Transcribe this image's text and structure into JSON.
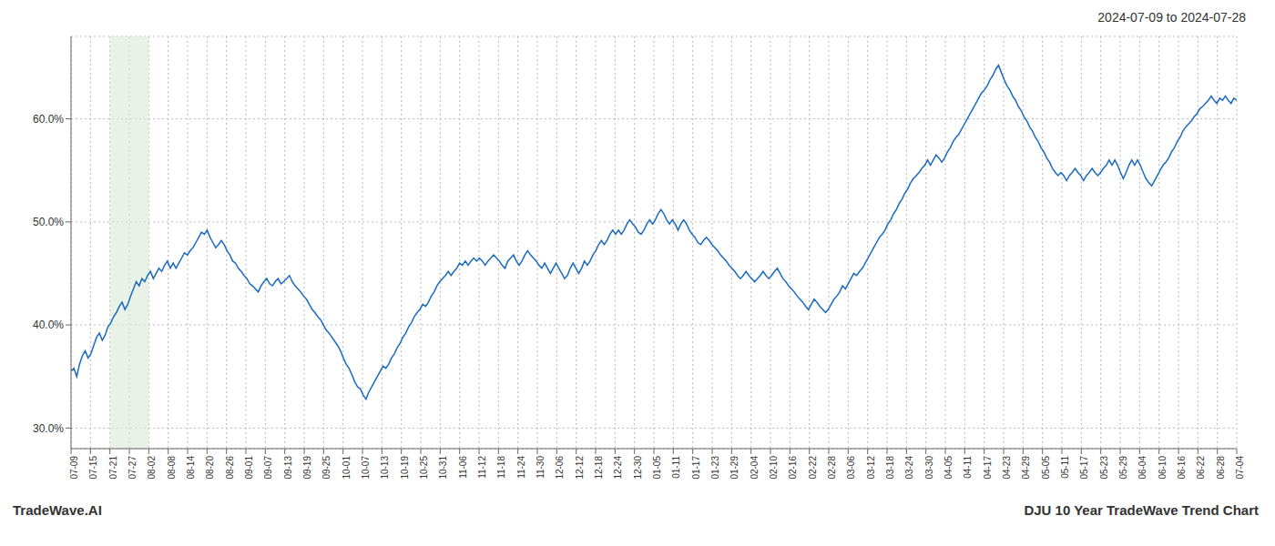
{
  "chart_data": {
    "type": "line",
    "title": "2024-07-09 to 2024-07-28",
    "annotations": [
      "TradeWave.AI",
      "DJU 10 Year TradeWave Trend Chart"
    ],
    "color": "#1b6abf",
    "grid": true,
    "regions": [
      {
        "x": [
          13.7,
          27.4
        ],
        "color": "#d5e8d4"
      }
    ],
    "xlim": [
      0,
      411
    ],
    "xticks": [
      {
        "value": 0,
        "label": "07-09"
      },
      {
        "value": 6.85,
        "label": "07-15"
      },
      {
        "value": 13.7,
        "label": "07-21"
      },
      {
        "value": 20.55,
        "label": "07-27"
      },
      {
        "value": 27.4,
        "label": "08-02"
      },
      {
        "value": 34.25,
        "label": "08-08"
      },
      {
        "value": 41.1,
        "label": "08-14"
      },
      {
        "value": 47.95,
        "label": "08-20"
      },
      {
        "value": 54.8,
        "label": "08-26"
      },
      {
        "value": 61.65,
        "label": "09-01"
      },
      {
        "value": 68.5,
        "label": "09-07"
      },
      {
        "value": 75.35,
        "label": "09-13"
      },
      {
        "value": 82.2,
        "label": "09-19"
      },
      {
        "value": 89.05,
        "label": "09-25"
      },
      {
        "value": 95.9,
        "label": "10-01"
      },
      {
        "value": 102.75,
        "label": "10-07"
      },
      {
        "value": 109.6,
        "label": "10-13"
      },
      {
        "value": 116.45,
        "label": "10-19"
      },
      {
        "value": 123.3,
        "label": "10-25"
      },
      {
        "value": 130.15,
        "label": "10-31"
      },
      {
        "value": 137,
        "label": "11-06"
      },
      {
        "value": 143.85,
        "label": "11-12"
      },
      {
        "value": 150.7,
        "label": "11-18"
      },
      {
        "value": 157.55,
        "label": "11-24"
      },
      {
        "value": 164.4,
        "label": "11-30"
      },
      {
        "value": 171.25,
        "label": "12-06"
      },
      {
        "value": 178.1,
        "label": "12-12"
      },
      {
        "value": 184.95,
        "label": "12-18"
      },
      {
        "value": 191.8,
        "label": "12-24"
      },
      {
        "value": 198.65,
        "label": "12-30"
      },
      {
        "value": 205.5,
        "label": "01-05"
      },
      {
        "value": 212.35,
        "label": "01-11"
      },
      {
        "value": 219.2,
        "label": "01-17"
      },
      {
        "value": 226.05,
        "label": "01-23"
      },
      {
        "value": 232.9,
        "label": "01-29"
      },
      {
        "value": 239.75,
        "label": "02-04"
      },
      {
        "value": 246.6,
        "label": "02-10"
      },
      {
        "value": 253.45,
        "label": "02-16"
      },
      {
        "value": 260.3,
        "label": "02-22"
      },
      {
        "value": 267.15,
        "label": "02-28"
      },
      {
        "value": 274,
        "label": "03-06"
      },
      {
        "value": 280.85,
        "label": "03-12"
      },
      {
        "value": 287.7,
        "label": "03-18"
      },
      {
        "value": 294.55,
        "label": "03-24"
      },
      {
        "value": 301.4,
        "label": "03-30"
      },
      {
        "value": 308.25,
        "label": "04-05"
      },
      {
        "value": 315.1,
        "label": "04-11"
      },
      {
        "value": 321.95,
        "label": "04-17"
      },
      {
        "value": 328.8,
        "label": "04-23"
      },
      {
        "value": 335.65,
        "label": "04-29"
      },
      {
        "value": 342.5,
        "label": "05-05"
      },
      {
        "value": 349.35,
        "label": "05-11"
      },
      {
        "value": 356.2,
        "label": "05-17"
      },
      {
        "value": 363.05,
        "label": "05-23"
      },
      {
        "value": 369.9,
        "label": "05-29"
      },
      {
        "value": 376.75,
        "label": "06-04"
      },
      {
        "value": 383.6,
        "label": "06-10"
      },
      {
        "value": 390.45,
        "label": "06-16"
      },
      {
        "value": 397.3,
        "label": "06-22"
      },
      {
        "value": 404.15,
        "label": "06-28"
      },
      {
        "value": 411,
        "label": "07-04"
      }
    ],
    "ylim": [
      0.28,
      0.68
    ],
    "yticks": [
      {
        "value": 0.3,
        "label": "30.0%"
      },
      {
        "value": 0.4,
        "label": "40.0%"
      },
      {
        "value": 0.5,
        "label": "50.0%"
      },
      {
        "value": 0.6,
        "label": "60.0%"
      }
    ],
    "x": [
      0,
      1,
      2,
      3,
      4,
      5,
      6,
      7,
      8,
      9,
      10,
      11,
      12,
      13,
      14,
      15,
      16,
      17,
      18,
      19,
      20,
      21,
      22,
      23,
      24,
      25,
      26,
      27,
      28,
      29,
      30,
      31,
      32,
      33,
      34,
      35,
      36,
      37,
      38,
      39,
      40,
      41,
      42,
      43,
      44,
      45,
      46,
      47,
      48,
      49,
      50,
      51,
      52,
      53,
      54,
      55,
      56,
      57,
      58,
      59,
      60,
      61,
      62,
      63,
      64,
      65,
      66,
      67,
      68,
      69,
      70,
      71,
      72,
      73,
      74,
      75,
      76,
      77,
      78,
      79,
      80,
      81,
      82,
      83,
      84,
      85,
      86,
      87,
      88,
      89,
      90,
      91,
      92,
      93,
      94,
      95,
      96,
      97,
      98,
      99,
      100,
      101,
      102,
      103,
      104,
      105,
      106,
      107,
      108,
      109,
      110,
      111,
      112,
      113,
      114,
      115,
      116,
      117,
      118,
      119,
      120,
      121,
      122,
      123,
      124,
      125,
      126,
      127,
      128,
      129,
      130,
      131,
      132,
      133,
      134,
      135,
      136,
      137,
      138,
      139,
      140,
      141,
      142,
      143,
      144,
      145,
      146,
      147,
      148,
      149,
      150,
      151,
      152,
      153,
      154,
      155,
      156,
      157,
      158,
      159,
      160,
      161,
      162,
      163,
      164,
      165,
      166,
      167,
      168,
      169,
      170,
      171,
      172,
      173,
      174,
      175,
      176,
      177,
      178,
      179,
      180,
      181,
      182,
      183,
      184,
      185,
      186,
      187,
      188,
      189,
      190,
      191,
      192,
      193,
      194,
      195,
      196,
      197,
      198,
      199,
      200,
      201,
      202,
      203,
      204,
      205,
      206,
      207,
      208,
      209,
      210,
      211,
      212,
      213,
      214,
      215,
      216,
      217,
      218,
      219,
      220,
      221,
      222,
      223,
      224,
      225,
      226,
      227,
      228,
      229,
      230,
      231,
      232,
      233,
      234,
      235,
      236,
      237,
      238,
      239,
      240,
      241,
      242,
      243,
      244,
      245,
      246,
      247,
      248,
      249,
      250,
      251,
      252,
      253,
      254,
      255,
      256,
      257,
      258,
      259,
      260,
      261,
      262,
      263,
      264,
      265,
      266,
      267,
      268,
      269,
      270,
      271,
      272,
      273,
      274,
      275,
      276,
      277,
      278,
      279,
      280,
      281,
      282,
      283,
      284,
      285,
      286,
      287,
      288,
      289,
      290,
      291,
      292,
      293,
      294,
      295,
      296,
      297,
      298,
      299,
      300,
      301,
      302,
      303,
      304,
      305,
      306,
      307,
      308,
      309,
      310,
      311,
      312,
      313,
      314,
      315,
      316,
      317,
      318,
      319,
      320,
      321,
      322,
      323,
      324,
      325,
      326,
      327,
      328,
      329,
      330,
      331,
      332,
      333,
      334,
      335,
      336,
      337,
      338,
      339,
      340,
      341,
      342,
      343,
      344,
      345,
      346,
      347,
      348,
      349,
      350,
      351,
      352,
      353,
      354,
      355,
      356,
      357,
      358,
      359,
      360,
      361,
      362,
      363,
      364,
      365,
      366,
      367,
      368,
      369,
      370,
      371,
      372,
      373,
      374,
      375,
      376,
      377,
      378,
      379,
      380,
      381,
      382,
      383,
      384,
      385,
      386,
      387,
      388,
      389,
      390,
      391,
      392,
      393,
      394,
      395,
      396,
      397,
      398,
      399,
      400,
      401,
      402,
      403,
      404,
      405,
      406,
      407,
      408,
      409,
      410,
      411
    ],
    "values": [
      0.355,
      0.358,
      0.35,
      0.362,
      0.37,
      0.375,
      0.368,
      0.372,
      0.38,
      0.388,
      0.392,
      0.385,
      0.39,
      0.398,
      0.402,
      0.408,
      0.412,
      0.418,
      0.422,
      0.415,
      0.42,
      0.428,
      0.435,
      0.442,
      0.438,
      0.445,
      0.442,
      0.448,
      0.452,
      0.445,
      0.45,
      0.455,
      0.452,
      0.458,
      0.462,
      0.455,
      0.46,
      0.455,
      0.46,
      0.465,
      0.47,
      0.468,
      0.472,
      0.475,
      0.48,
      0.485,
      0.49,
      0.488,
      0.492,
      0.485,
      0.48,
      0.475,
      0.478,
      0.482,
      0.478,
      0.472,
      0.468,
      0.462,
      0.46,
      0.455,
      0.452,
      0.448,
      0.445,
      0.44,
      0.438,
      0.435,
      0.432,
      0.438,
      0.442,
      0.445,
      0.44,
      0.438,
      0.442,
      0.445,
      0.44,
      0.442,
      0.445,
      0.448,
      0.442,
      0.438,
      0.435,
      0.432,
      0.428,
      0.425,
      0.42,
      0.415,
      0.412,
      0.408,
      0.405,
      0.4,
      0.395,
      0.392,
      0.388,
      0.384,
      0.38,
      0.375,
      0.368,
      0.362,
      0.358,
      0.352,
      0.345,
      0.34,
      0.338,
      0.332,
      0.328,
      0.335,
      0.34,
      0.345,
      0.35,
      0.355,
      0.36,
      0.358,
      0.362,
      0.368,
      0.372,
      0.378,
      0.382,
      0.388,
      0.392,
      0.398,
      0.402,
      0.408,
      0.412,
      0.415,
      0.42,
      0.418,
      0.422,
      0.428,
      0.432,
      0.438,
      0.442,
      0.445,
      0.448,
      0.452,
      0.448,
      0.452,
      0.455,
      0.46,
      0.458,
      0.462,
      0.458,
      0.462,
      0.465,
      0.462,
      0.465,
      0.462,
      0.458,
      0.462,
      0.465,
      0.468,
      0.465,
      0.462,
      0.458,
      0.455,
      0.462,
      0.465,
      0.468,
      0.462,
      0.458,
      0.462,
      0.468,
      0.472,
      0.468,
      0.465,
      0.462,
      0.458,
      0.455,
      0.46,
      0.455,
      0.45,
      0.455,
      0.46,
      0.455,
      0.45,
      0.445,
      0.448,
      0.455,
      0.46,
      0.455,
      0.45,
      0.455,
      0.462,
      0.458,
      0.462,
      0.468,
      0.472,
      0.478,
      0.482,
      0.478,
      0.482,
      0.488,
      0.492,
      0.488,
      0.492,
      0.488,
      0.492,
      0.498,
      0.502,
      0.498,
      0.495,
      0.49,
      0.488,
      0.492,
      0.498,
      0.502,
      0.498,
      0.502,
      0.508,
      0.512,
      0.508,
      0.502,
      0.498,
      0.502,
      0.498,
      0.492,
      0.498,
      0.502,
      0.498,
      0.492,
      0.488,
      0.485,
      0.48,
      0.478,
      0.482,
      0.485,
      0.482,
      0.478,
      0.475,
      0.472,
      0.468,
      0.465,
      0.462,
      0.458,
      0.455,
      0.452,
      0.448,
      0.445,
      0.448,
      0.452,
      0.448,
      0.445,
      0.442,
      0.445,
      0.448,
      0.452,
      0.448,
      0.445,
      0.448,
      0.452,
      0.455,
      0.45,
      0.445,
      0.442,
      0.438,
      0.435,
      0.432,
      0.428,
      0.425,
      0.422,
      0.418,
      0.415,
      0.42,
      0.425,
      0.422,
      0.418,
      0.415,
      0.412,
      0.415,
      0.42,
      0.425,
      0.428,
      0.432,
      0.438,
      0.435,
      0.44,
      0.445,
      0.45,
      0.448,
      0.452,
      0.455,
      0.46,
      0.465,
      0.47,
      0.475,
      0.48,
      0.485,
      0.488,
      0.492,
      0.498,
      0.502,
      0.508,
      0.512,
      0.518,
      0.522,
      0.528,
      0.532,
      0.538,
      0.542,
      0.545,
      0.548,
      0.552,
      0.555,
      0.56,
      0.555,
      0.56,
      0.565,
      0.562,
      0.558,
      0.562,
      0.568,
      0.572,
      0.578,
      0.582,
      0.585,
      0.59,
      0.595,
      0.6,
      0.605,
      0.61,
      0.615,
      0.62,
      0.625,
      0.628,
      0.632,
      0.638,
      0.642,
      0.648,
      0.652,
      0.645,
      0.638,
      0.632,
      0.628,
      0.622,
      0.618,
      0.612,
      0.608,
      0.602,
      0.598,
      0.592,
      0.588,
      0.582,
      0.578,
      0.572,
      0.568,
      0.562,
      0.558,
      0.552,
      0.548,
      0.545,
      0.548,
      0.545,
      0.54,
      0.545,
      0.548,
      0.552,
      0.548,
      0.545,
      0.54,
      0.545,
      0.548,
      0.552,
      0.548,
      0.545,
      0.548,
      0.552,
      0.555,
      0.56,
      0.555,
      0.56,
      0.555,
      0.548,
      0.542,
      0.548,
      0.555,
      0.56,
      0.555,
      0.56,
      0.555,
      0.548,
      0.542,
      0.538,
      0.535,
      0.54,
      0.545,
      0.55,
      0.555,
      0.558,
      0.562,
      0.568,
      0.572,
      0.578,
      0.582,
      0.588,
      0.592,
      0.595,
      0.598,
      0.602,
      0.605,
      0.61,
      0.612,
      0.615,
      0.618,
      0.622,
      0.618,
      0.615,
      0.62,
      0.618,
      0.622,
      0.618,
      0.615,
      0.62,
      0.618
    ]
  }
}
